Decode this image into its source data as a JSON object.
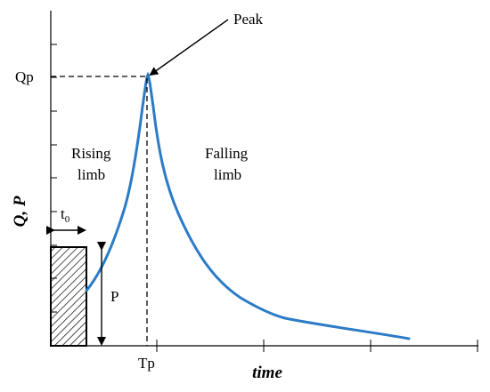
{
  "diagram": {
    "peak_label": "Peak",
    "qp_label": "Qp",
    "tp_label": "Tp",
    "rising_limb_line1": "Rising",
    "rising_limb_line2": "limb",
    "falling_limb_line1": "Falling",
    "falling_limb_line2": "limb",
    "y_axis_title": "Q, P",
    "x_axis_title": "time",
    "t0_label_main": "t",
    "t0_label_sub": "0",
    "p_label": "P"
  },
  "colors": {
    "curve": "#2b7bc6",
    "axis": "#000000",
    "background": "#ffffff"
  }
}
